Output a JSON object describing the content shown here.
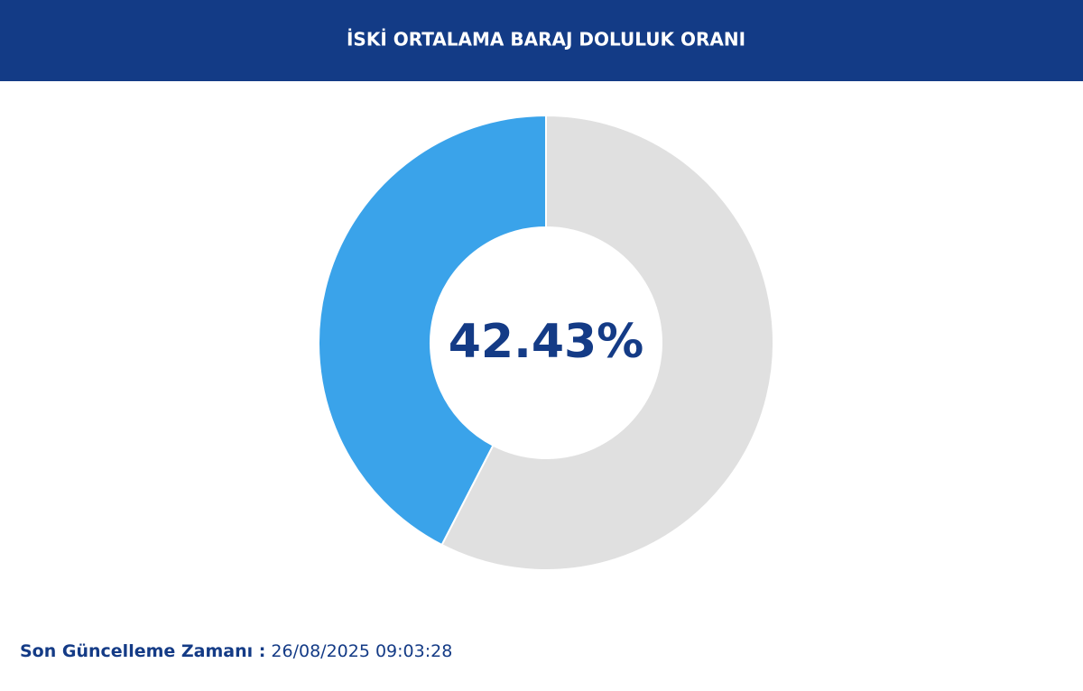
{
  "chart_data": {
    "type": "donut",
    "title": "İSKİ ORTALAMA BARAJ DOLULUK ORANI",
    "categories": [
      null,
      null
    ],
    "values": [
      42.43,
      57.57
    ],
    "value_labels": [
      "42.43%",
      null
    ],
    "colors": [
      "#3aa3ea",
      "#e0e0e0"
    ],
    "footer_label": "Son Güncelleme Zamanı :",
    "updated": "26/08/2025 09:03:28"
  }
}
